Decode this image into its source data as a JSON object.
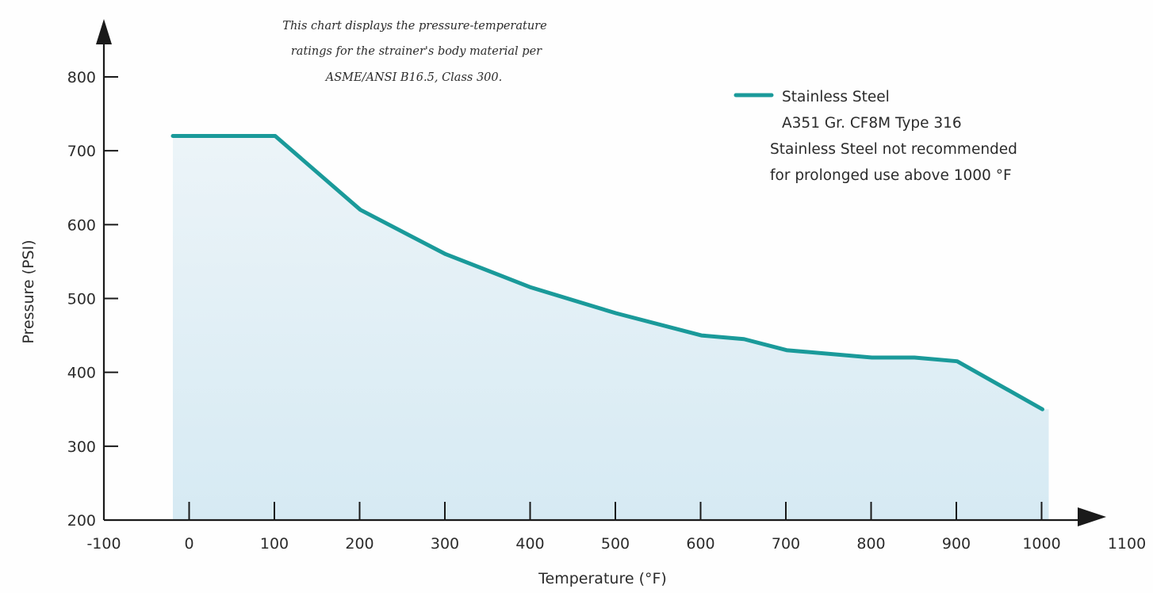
{
  "chart_data": {
    "type": "area",
    "note": [
      "This chart displays the pressure-temperature",
      "ratings for the strainer's body material per",
      "ASME/ANSI B16.5, Class 300."
    ],
    "xlabel": "Temperature (°F)",
    "ylabel": "Pressure (PSI)",
    "xlim": [
      -100,
      1100
    ],
    "ylim": [
      200,
      800
    ],
    "x_ticks": [
      -100,
      0,
      100,
      200,
      300,
      400,
      500,
      600,
      700,
      800,
      900,
      1000,
      1100
    ],
    "x_tick_labels": [
      "-100",
      "0",
      "100",
      "200",
      "300",
      "400",
      "500",
      "600",
      "700",
      "800",
      "900",
      "1000",
      "1100"
    ],
    "y_ticks": [
      200,
      300,
      400,
      500,
      600,
      700,
      800
    ],
    "y_tick_labels": [
      "200",
      "300",
      "400",
      "500",
      "600",
      "700",
      "800"
    ],
    "series": [
      {
        "name": "Stainless Steel",
        "color": "#1a9a9a",
        "fill": "#deeef5",
        "x": [
          -20,
          100,
          200,
          300,
          400,
          500,
          600,
          650,
          700,
          800,
          850,
          900,
          1000
        ],
        "y": [
          720,
          720,
          620,
          560,
          515,
          480,
          450,
          445,
          430,
          420,
          420,
          415,
          350
        ]
      }
    ],
    "legend": {
      "position": "top-right",
      "lines": [
        "Stainless Steel",
        "A351 Gr. CF8M Type 316",
        "Stainless Steel not recommended",
        "for prolonged use above 1000 °F"
      ]
    },
    "grid": false
  }
}
